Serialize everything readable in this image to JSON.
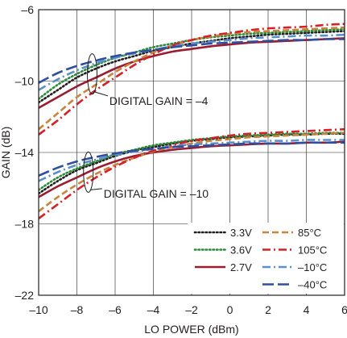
{
  "chart_data": {
    "type": "line",
    "xlabel": "LO POWER (dBm)",
    "ylabel": "GAIN (dB)",
    "xlim": [
      -10,
      6
    ],
    "ylim": [
      -22,
      -6
    ],
    "xticks": [
      -10,
      -8,
      -6,
      -4,
      -2,
      0,
      2,
      4,
      6
    ],
    "yticks": [
      -22,
      -18,
      -14,
      -10,
      -6
    ],
    "xtick_labels": [
      "–10",
      "–8",
      "–6",
      "–4",
      "–2",
      "0",
      "2",
      "4",
      "6"
    ],
    "ytick_labels": [
      "–22",
      "–18",
      "–14",
      "–10",
      "–6"
    ],
    "grid": true,
    "legend_position": "bottom-right",
    "annotations": [
      {
        "text": "DIGITAL GAIN = –4",
        "x": -6.3,
        "y": -11.1,
        "ellipse_x": -7.2,
        "ellipse_y": -9.6
      },
      {
        "text": "DIGITAL GAIN = –10",
        "x": -6.6,
        "y": -16.3,
        "ellipse_x": -7.4,
        "ellipse_y": -15.1
      }
    ],
    "x": [
      -10,
      -9,
      -8,
      -7,
      -6,
      -5,
      -4,
      -3,
      -2,
      -1,
      0,
      1,
      2,
      3,
      4,
      5,
      6
    ],
    "series": [
      {
        "name": "3.3V",
        "color": "#231f20",
        "dash": "dotted",
        "groups": [
          [
            -11.2,
            -10.5,
            -9.8,
            -9.3,
            -8.9,
            -8.6,
            -8.3,
            -8.1,
            -7.9,
            -7.75,
            -7.6,
            -7.5,
            -7.4,
            -7.35,
            -7.3,
            -7.25,
            -7.2
          ],
          [
            -16.3,
            -15.6,
            -15.0,
            -14.6,
            -14.2,
            -13.9,
            -13.7,
            -13.5,
            -13.35,
            -13.25,
            -13.15,
            -13.1,
            -13.05,
            -13.0,
            -13.0,
            -12.95,
            -12.95
          ]
        ]
      },
      {
        "name": "3.6V",
        "color": "#2e8b3a",
        "dash": "dotted",
        "groups": [
          [
            -11.0,
            -10.2,
            -9.6,
            -9.1,
            -8.7,
            -8.4,
            -8.1,
            -7.9,
            -7.7,
            -7.55,
            -7.45,
            -7.35,
            -7.3,
            -7.25,
            -7.2,
            -7.15,
            -7.1
          ],
          [
            -16.1,
            -15.4,
            -14.9,
            -14.5,
            -14.1,
            -13.85,
            -13.6,
            -13.45,
            -13.3,
            -13.2,
            -13.1,
            -13.05,
            -13.0,
            -12.95,
            -12.95,
            -12.9,
            -12.9
          ]
        ]
      },
      {
        "name": "2.7V",
        "color": "#9b1b30",
        "dash": "solid",
        "groups": [
          [
            -11.5,
            -10.9,
            -10.3,
            -9.8,
            -9.3,
            -8.9,
            -8.6,
            -8.35,
            -8.2,
            -8.05,
            -7.95,
            -7.85,
            -7.8,
            -7.75,
            -7.7,
            -7.65,
            -7.6
          ],
          [
            -16.5,
            -15.9,
            -15.4,
            -14.9,
            -14.5,
            -14.2,
            -14.0,
            -13.85,
            -13.75,
            -13.65,
            -13.6,
            -13.55,
            -13.5,
            -13.5,
            -13.45,
            -13.45,
            -13.4
          ]
        ]
      },
      {
        "name": "85°C",
        "color": "#c8843c",
        "dash": "dashed",
        "groups": [
          [
            -12.7,
            -11.8,
            -10.9,
            -10.2,
            -9.5,
            -8.9,
            -8.4,
            -8.0,
            -7.7,
            -7.5,
            -7.35,
            -7.25,
            -7.2,
            -7.15,
            -7.1,
            -7.05,
            -7.0
          ],
          [
            -17.3,
            -16.5,
            -15.8,
            -15.2,
            -14.7,
            -14.3,
            -13.95,
            -13.7,
            -13.5,
            -13.35,
            -13.25,
            -13.15,
            -13.1,
            -13.05,
            -13.0,
            -12.95,
            -12.9
          ]
        ]
      },
      {
        "name": "105°C",
        "color": "#d42027",
        "dash": "dashdot",
        "groups": [
          [
            -13.0,
            -12.2,
            -11.3,
            -10.5,
            -9.8,
            -9.1,
            -8.5,
            -8.0,
            -7.7,
            -7.45,
            -7.3,
            -7.15,
            -7.05,
            -7.0,
            -6.95,
            -6.85,
            -6.8
          ],
          [
            -17.7,
            -16.9,
            -16.1,
            -15.4,
            -14.8,
            -14.3,
            -13.9,
            -13.6,
            -13.35,
            -13.2,
            -13.05,
            -12.95,
            -12.9,
            -12.85,
            -12.8,
            -12.75,
            -12.7
          ]
        ]
      },
      {
        "name": "–10°C",
        "color": "#5b8fc9",
        "dash": "dashdot",
        "groups": [
          [
            -10.5,
            -9.9,
            -9.4,
            -9.0,
            -8.7,
            -8.45,
            -8.25,
            -8.05,
            -7.9,
            -7.8,
            -7.7,
            -7.6,
            -7.55,
            -7.5,
            -7.45,
            -7.45,
            -7.4
          ],
          [
            -15.6,
            -15.1,
            -14.7,
            -14.4,
            -14.15,
            -13.95,
            -13.8,
            -13.65,
            -13.55,
            -13.5,
            -13.45,
            -13.4,
            -13.35,
            -13.35,
            -13.3,
            -13.3,
            -13.3
          ]
        ]
      },
      {
        "name": "–40°C",
        "color": "#2e4f9e",
        "dash": "longdash",
        "groups": [
          [
            -10.1,
            -9.55,
            -9.15,
            -8.85,
            -8.6,
            -8.4,
            -8.25,
            -8.1,
            -8.0,
            -7.9,
            -7.85,
            -7.8,
            -7.75,
            -7.7,
            -7.7,
            -7.65,
            -7.65
          ],
          [
            -15.3,
            -14.85,
            -14.5,
            -14.25,
            -14.05,
            -13.9,
            -13.8,
            -13.7,
            -13.65,
            -13.6,
            -13.55,
            -13.5,
            -13.5,
            -13.5,
            -13.45,
            -13.45,
            -13.45
          ]
        ]
      }
    ]
  }
}
